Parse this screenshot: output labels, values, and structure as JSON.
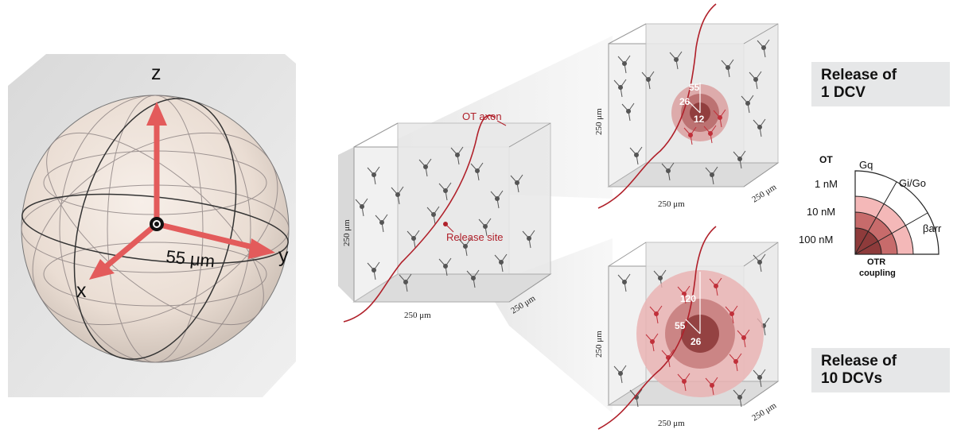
{
  "sphere": {
    "axis_x": "x",
    "axis_y": "y",
    "axis_z": "z",
    "radius_label": "55 μm"
  },
  "center_cube": {
    "axon_label": "OT axon",
    "release_site_label": "Release site",
    "dim_bottom": "250 μm",
    "dim_side": "250 μm",
    "dim_right": "250 μm"
  },
  "top_cube": {
    "title_line1": "Release of",
    "title_line2": "1 DCV",
    "r_outer": "55",
    "r_mid": "26",
    "r_inner": "12",
    "dim_bottom": "250 μm",
    "dim_side": "250 μm",
    "dim_right": "250 μm"
  },
  "bottom_cube": {
    "title_line1": "Release of",
    "title_line2": "10 DCVs",
    "r_outer": "120",
    "r_mid": "55",
    "r_inner": "26",
    "dim_bottom": "250 μm",
    "dim_side": "250 μm",
    "dim_right": "250 μm"
  },
  "coupling_legend": {
    "header": "OT",
    "conc": [
      "1 nM",
      "10 nM",
      "100 nM"
    ],
    "pathways": [
      "Gq",
      "Gi/Go",
      "βarr"
    ],
    "footer_line1": "OTR",
    "footer_line2": "coupling",
    "colors": {
      "light": "#f4b8b8",
      "mid": "#c76b6b",
      "dark": "#8e3b3b"
    }
  },
  "colors": {
    "axon": "#b0202a",
    "neuron_gray": "#555555",
    "neuron_red": "#c0303a",
    "sphere_arrow": "#e35b5b"
  }
}
